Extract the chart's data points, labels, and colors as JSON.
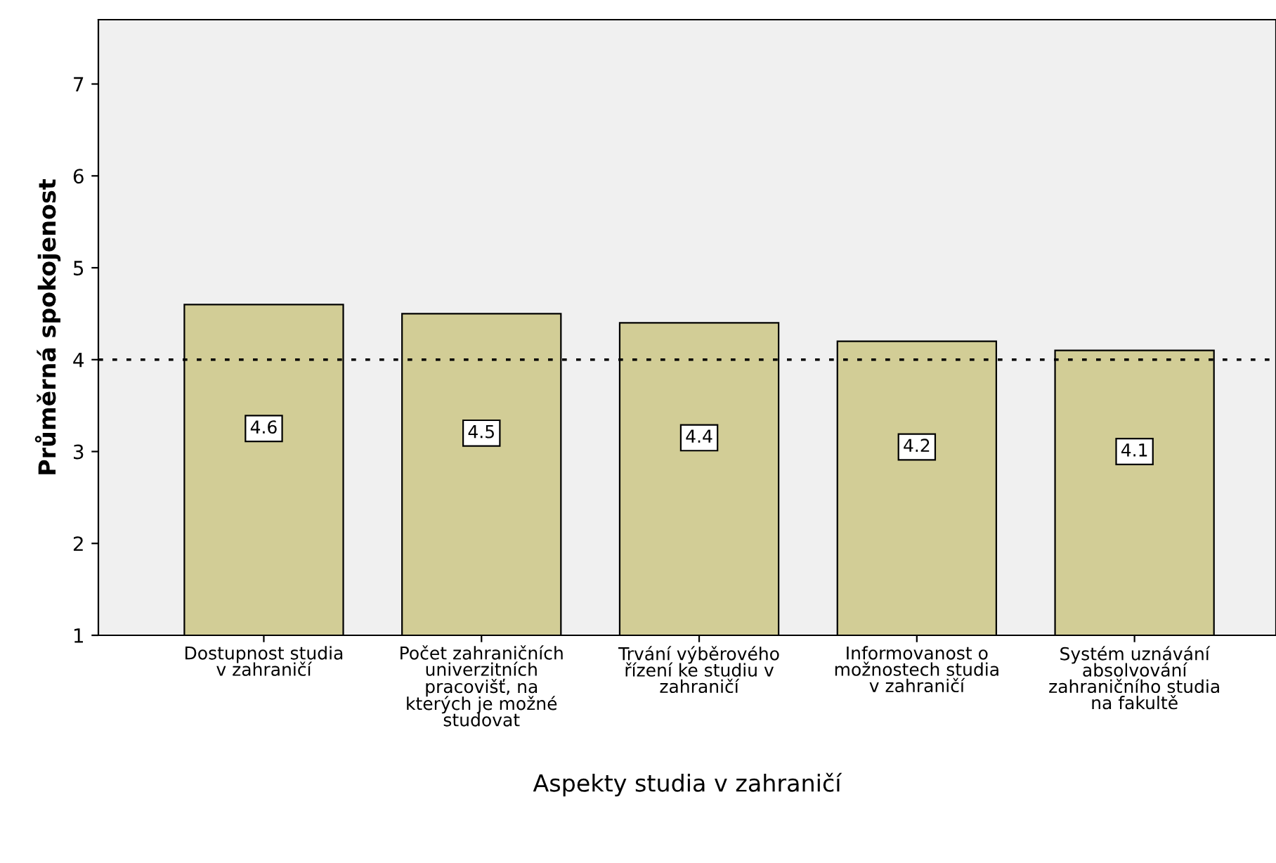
{
  "chart_data": {
    "type": "bar",
    "xlabel": "Aspekty studia v zahraničí",
    "ylabel": "Průměrná spokojenost",
    "categories": [
      "Dostupnost studia\nv zahraničí",
      "Počet zahraničních\nuniverzitních\npracovišť, na\nkterých je možné\nstudovat",
      "Trvání výběrového\nřízení ke studiu v\nzahraničí",
      "Informovanost o\nmožnostech studia\nv zahraničí",
      "Systém uznávání\nabsolvování\nzahraničního studia\nna fakultě"
    ],
    "values": [
      4.6,
      4.5,
      4.4,
      4.2,
      4.1
    ],
    "color": "#d2cd96",
    "data_labels": true,
    "ylim": [
      1,
      7.7
    ],
    "yticks": [
      1,
      2,
      3,
      4,
      5,
      6,
      7
    ],
    "grid": false,
    "legend": false,
    "ref_lines": [
      {
        "axis": "y",
        "value": 4,
        "line_style": "dotted",
        "color": "#000000"
      }
    ]
  }
}
